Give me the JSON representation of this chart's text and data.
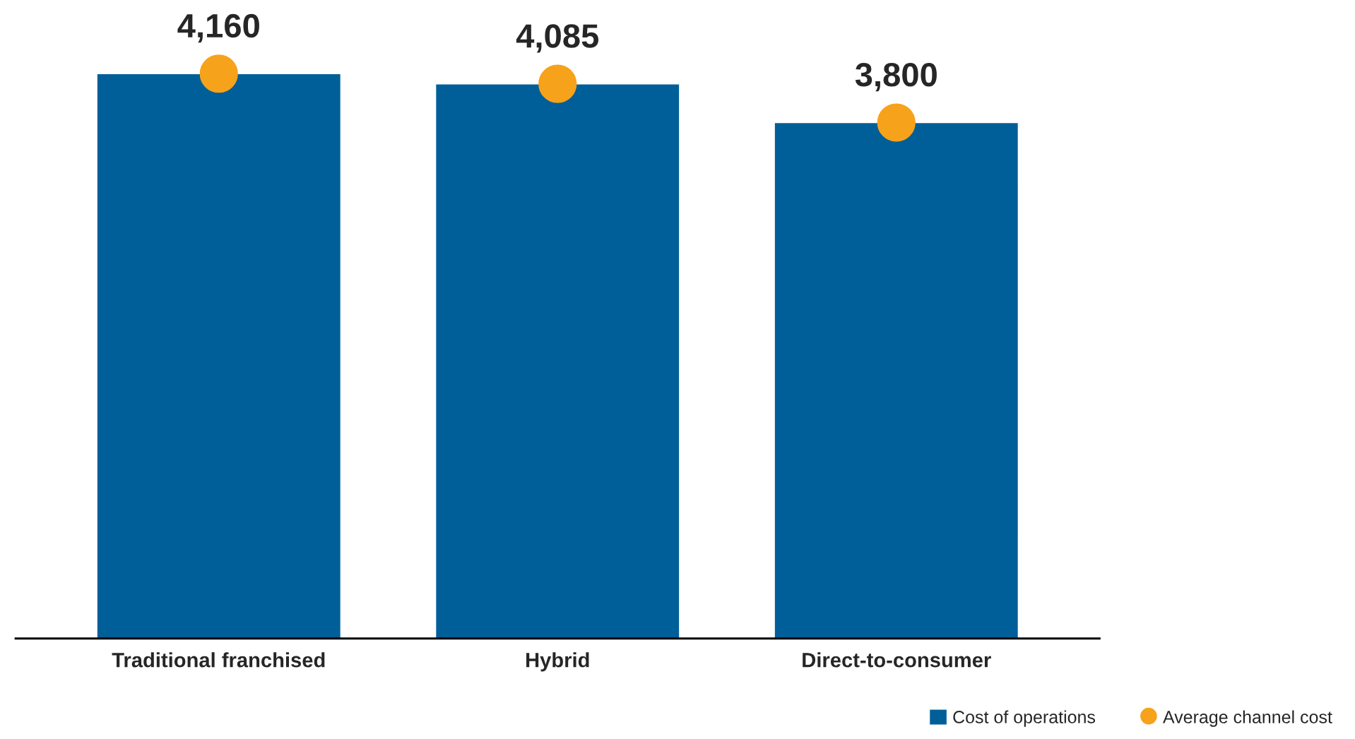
{
  "chart_data": {
    "type": "bar",
    "categories": [
      "Traditional franchised",
      "Hybrid",
      "Direct-to-consumer"
    ],
    "series": [
      {
        "name": "Cost of operations",
        "type": "bar",
        "color": "#005f99",
        "values": [
          4160,
          4085,
          3800
        ]
      },
      {
        "name": "Average channel cost",
        "type": "scatter",
        "color": "#f7a21b",
        "values": [
          4160,
          4085,
          3800
        ],
        "value_labels": [
          "4,160",
          "4,085",
          "3,800"
        ]
      }
    ],
    "grid": false,
    "legend": "bottom right",
    "marker": "circle"
  }
}
